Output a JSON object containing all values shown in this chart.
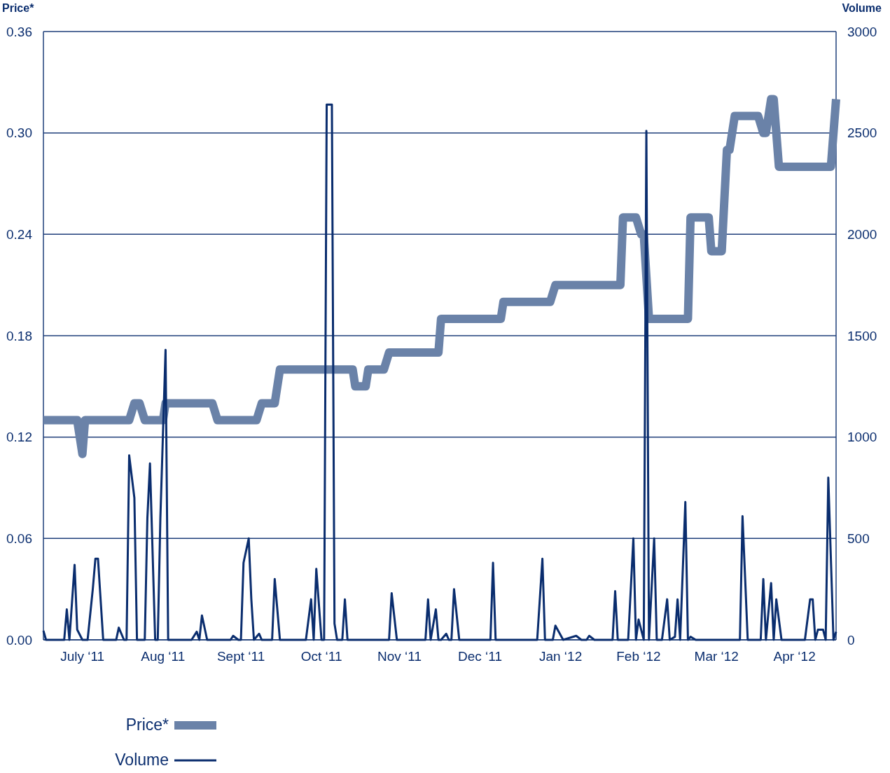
{
  "chart_data": {
    "type": "line",
    "ylabel": "Price*",
    "y2label": "Volume",
    "legend": "bottom",
    "grid": "y",
    "xlim": [
      "2011-07-01",
      "2012-05-01"
    ],
    "xticks": [
      {
        "value": "2011-07-16",
        "label": "July ‘11"
      },
      {
        "value": "2011-08-16",
        "label": "Aug ‘11"
      },
      {
        "value": "2011-09-15",
        "label": "Sept ‘11"
      },
      {
        "value": "2011-10-16",
        "label": "Oct ‘11"
      },
      {
        "value": "2011-11-15",
        "label": "Nov ‘11"
      },
      {
        "value": "2011-12-16",
        "label": "Dec ‘11"
      },
      {
        "value": "2012-01-16",
        "label": "Jan ‘12"
      },
      {
        "value": "2012-02-15",
        "label": "Feb ‘12"
      },
      {
        "value": "2012-03-16",
        "label": "Mar ‘12"
      },
      {
        "value": "2012-04-15",
        "label": "Apr ‘12"
      }
    ],
    "ylim": [
      0,
      0.36
    ],
    "yticks": [
      {
        "value": 0,
        "label": "0.00"
      },
      {
        "value": 0.06,
        "label": "0.06"
      },
      {
        "value": 0.12,
        "label": "0.12"
      },
      {
        "value": 0.18,
        "label": "0.18"
      },
      {
        "value": 0.24,
        "label": "0.24"
      },
      {
        "value": 0.3,
        "label": "0.30"
      },
      {
        "value": 0.36,
        "label": "0.36"
      }
    ],
    "y2lim": [
      0,
      3000
    ],
    "y2ticks": [
      0,
      500,
      1000,
      1500,
      2000,
      2500,
      3000
    ],
    "series": [
      {
        "name": "Price*",
        "color": "#6a82a8",
        "x": [
          "2011-07-01",
          "2011-07-14",
          "2011-07-16",
          "2011-07-17",
          "2011-08-03",
          "2011-08-05",
          "2011-08-07",
          "2011-08-09",
          "2011-08-16",
          "2011-08-17",
          "2011-09-04",
          "2011-09-06",
          "2011-09-21",
          "2011-09-23",
          "2011-09-28",
          "2011-09-30",
          "2011-10-28",
          "2011-10-29",
          "2011-11-02",
          "2011-11-03",
          "2011-11-09",
          "2011-11-11",
          "2011-11-30",
          "2011-12-01",
          "2011-12-24",
          "2011-12-25",
          "2012-01-12",
          "2012-01-14",
          "2012-02-08",
          "2012-02-09",
          "2012-02-14",
          "2012-02-16",
          "2012-02-17",
          "2012-02-19",
          "2012-03-05",
          "2012-03-06",
          "2012-03-13",
          "2012-03-14",
          "2012-03-18",
          "2012-03-20",
          "2012-03-21",
          "2012-03-23",
          "2012-04-01",
          "2012-04-03",
          "2012-04-04",
          "2012-04-06",
          "2012-04-07",
          "2012-04-09",
          "2012-04-29",
          "2012-05-01"
        ],
        "values": [
          0.13,
          0.13,
          0.11,
          0.13,
          0.13,
          0.14,
          0.14,
          0.13,
          0.13,
          0.14,
          0.14,
          0.13,
          0.13,
          0.14,
          0.14,
          0.16,
          0.16,
          0.15,
          0.15,
          0.16,
          0.16,
          0.17,
          0.17,
          0.19,
          0.19,
          0.2,
          0.2,
          0.21,
          0.21,
          0.25,
          0.25,
          0.24,
          0.24,
          0.19,
          0.19,
          0.25,
          0.25,
          0.23,
          0.23,
          0.29,
          0.29,
          0.31,
          0.31,
          0.3,
          0.3,
          0.32,
          0.32,
          0.28,
          0.28,
          0.32
        ]
      },
      {
        "name": "Volume",
        "color": "#0a2d6e",
        "axis": "y2",
        "x": [
          "2011-07-01",
          "2011-07-02",
          "2011-07-09",
          "2011-07-10",
          "2011-07-11",
          "2011-07-13",
          "2011-07-14",
          "2011-07-16",
          "2011-07-18",
          "2011-07-20",
          "2011-07-21",
          "2011-07-22",
          "2011-07-24",
          "2011-07-29",
          "2011-07-30",
          "2011-08-01",
          "2011-08-02",
          "2011-08-03",
          "2011-08-05",
          "2011-08-06",
          "2011-08-09",
          "2011-08-10",
          "2011-08-11",
          "2011-08-13",
          "2011-08-14",
          "2011-08-15",
          "2011-08-17",
          "2011-08-18",
          "2011-08-27",
          "2011-08-29",
          "2011-08-30",
          "2011-08-31",
          "2011-09-02",
          "2011-09-11",
          "2011-09-12",
          "2011-09-14",
          "2011-09-15",
          "2011-09-16",
          "2011-09-18",
          "2011-09-19",
          "2011-09-20",
          "2011-09-22",
          "2011-09-23",
          "2011-09-27",
          "2011-09-28",
          "2011-09-30",
          "2011-10-10",
          "2011-10-12",
          "2011-10-13",
          "2011-10-14",
          "2011-10-16",
          "2011-10-17",
          "2011-10-18",
          "2011-10-20",
          "2011-10-21",
          "2011-10-22",
          "2011-10-24",
          "2011-10-25",
          "2011-10-26",
          "2011-11-11",
          "2011-11-12",
          "2011-11-14",
          "2011-11-25",
          "2011-11-26",
          "2011-11-27",
          "2011-11-29",
          "2011-11-30",
          "2011-12-01",
          "2011-12-03",
          "2011-12-04",
          "2011-12-05",
          "2011-12-06",
          "2011-12-08",
          "2011-12-20",
          "2011-12-21",
          "2011-12-22",
          "2012-01-07",
          "2012-01-09",
          "2012-01-10",
          "2012-01-13",
          "2012-01-14",
          "2012-01-17",
          "2012-01-22",
          "2012-01-24",
          "2012-01-26",
          "2012-01-27",
          "2012-01-29",
          "2012-02-05",
          "2012-02-06",
          "2012-02-07",
          "2012-02-11",
          "2012-02-13",
          "2012-02-14",
          "2012-02-15",
          "2012-02-17",
          "2012-02-18",
          "2012-02-19",
          "2012-02-21",
          "2012-02-22",
          "2012-02-24",
          "2012-02-26",
          "2012-02-27",
          "2012-02-29",
          "2012-03-01",
          "2012-03-02",
          "2012-03-04",
          "2012-03-05",
          "2012-03-06",
          "2012-03-08",
          "2012-03-25",
          "2012-03-26",
          "2012-03-28",
          "2012-04-02",
          "2012-04-03",
          "2012-04-04",
          "2012-04-06",
          "2012-04-07",
          "2012-04-08",
          "2012-04-10",
          "2012-04-19",
          "2012-04-21",
          "2012-04-22",
          "2012-04-23",
          "2012-04-24",
          "2012-04-26",
          "2012-04-27",
          "2012-04-28",
          "2012-04-30",
          "2012-05-01"
        ],
        "values": [
          45,
          0,
          0,
          150,
          0,
          370,
          50,
          0,
          0,
          250,
          400,
          400,
          0,
          0,
          60,
          0,
          0,
          910,
          700,
          0,
          0,
          600,
          870,
          0,
          0,
          600,
          1430,
          0,
          0,
          40,
          0,
          120,
          0,
          0,
          20,
          0,
          0,
          380,
          500,
          200,
          0,
          30,
          0,
          0,
          300,
          0,
          0,
          200,
          0,
          350,
          0,
          0,
          2640,
          2640,
          80,
          0,
          0,
          200,
          0,
          0,
          230,
          0,
          0,
          200,
          0,
          150,
          0,
          0,
          30,
          0,
          0,
          250,
          0,
          0,
          380,
          0,
          0,
          400,
          0,
          0,
          70,
          0,
          20,
          0,
          0,
          20,
          0,
          0,
          240,
          0,
          0,
          500,
          0,
          100,
          0,
          2510,
          0,
          500,
          0,
          0,
          200,
          0,
          15,
          200,
          0,
          680,
          0,
          15,
          0,
          0,
          610,
          0,
          0,
          300,
          0,
          280,
          0,
          200,
          0,
          0,
          200,
          200,
          0,
          50,
          50,
          0,
          800,
          0,
          40
        ]
      }
    ]
  }
}
